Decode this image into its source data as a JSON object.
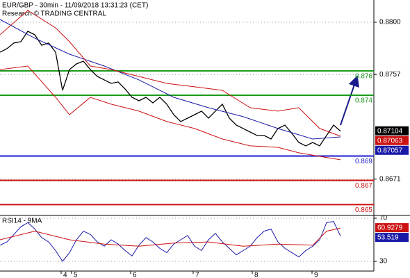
{
  "chart_data": [
    {
      "type": "line",
      "title": "EUR/GBP - 30min - 11/09/2018 13:31:23 (CET)",
      "subtitle": "Research © TRADING CENTRAL",
      "xlim": [
        0,
        269
      ],
      "ylim": [
        0.86411,
        0.88183
      ],
      "yticks": [
        {
          "value": 0.88,
          "label": "0.8800"
        },
        0.8757,
        0.8671
      ],
      "grid": true,
      "series": [
        {
          "color": "#000000",
          "x": [
            0,
            5,
            10,
            15,
            20,
            25,
            30,
            35,
            40,
            45,
            50,
            55,
            60,
            65,
            70,
            75,
            80,
            85,
            90,
            95,
            100,
            105,
            110,
            115,
            120,
            125,
            130,
            135,
            140,
            145,
            150,
            155,
            160,
            165,
            170,
            175,
            180,
            185,
            190,
            195,
            200,
            205,
            210,
            215,
            220,
            225,
            230,
            235,
            240,
            245
          ],
          "values": [
            0.87754,
            0.87783,
            0.87829,
            0.8784,
            0.87926,
            0.87897,
            0.87811,
            0.87829,
            0.87754,
            0.8744,
            0.87611,
            0.87657,
            0.8768,
            0.87611,
            0.87554,
            0.87526,
            0.87497,
            0.87509,
            0.87451,
            0.87383,
            0.87354,
            0.87383,
            0.87337,
            0.87383,
            0.87326,
            0.8724,
            0.87183,
            0.87211,
            0.8724,
            0.87269,
            0.87211,
            0.87269,
            0.87326,
            0.87211,
            0.87154,
            0.87126,
            0.87097,
            0.87069,
            0.87069,
            0.8704,
            0.87126,
            0.87154,
            0.87086,
            0.87011,
            0.86983,
            0.87011,
            0.86983,
            0.87069,
            0.87154,
            0.87104
          ]
        },
        {
          "color": "#1a1aa8",
          "x": [
            0,
            25,
            50,
            75,
            100,
            125,
            150,
            175,
            200,
            225,
            245
          ],
          "values": [
            0.88023,
            0.87869,
            0.87737,
            0.8764,
            0.87526,
            0.87383,
            0.87297,
            0.87223,
            0.87126,
            0.8704,
            0.87057
          ]
        },
        {
          "color": "#cc1111",
          "x": [
            0,
            20,
            40,
            50,
            65,
            80,
            100,
            120,
            140,
            160,
            180,
            200,
            215,
            230,
            245
          ],
          "values": [
            0.87897,
            0.88097,
            0.87954,
            0.8784,
            0.8764,
            0.87611,
            0.87554,
            0.87497,
            0.87469,
            0.8744,
            0.87297,
            0.87269,
            0.87297,
            0.87126,
            0.87063
          ]
        },
        {
          "color": "#cc1111",
          "x": [
            0,
            20,
            40,
            50,
            65,
            80,
            100,
            120,
            140,
            160,
            180,
            200,
            215,
            230,
            245
          ],
          "values": [
            0.87611,
            0.8764,
            0.87383,
            0.8724,
            0.87383,
            0.87326,
            0.87269,
            0.87183,
            0.87126,
            0.8704,
            0.86983,
            0.86971,
            0.86926,
            0.86897,
            0.86869
          ]
        }
      ],
      "levels": [
        {
          "value": 0.876,
          "color": "#1a9a1a"
        },
        {
          "value": 0.874,
          "color": "#1a9a1a"
        },
        {
          "value": 0.869,
          "color": "#1a1ad0"
        },
        {
          "value": 0.867,
          "color": "#cc1111"
        },
        {
          "value": 0.865,
          "color": "#cc1111"
        }
      ],
      "price_labels": [
        {
          "value": 0.87104,
          "color": "#000000"
        },
        {
          "value": 0.87063,
          "color": "#cc1111"
        },
        {
          "value": 0.87057,
          "color": "#1a1aa8"
        }
      ]
    },
    {
      "type": "line",
      "title": "RSI14 - 9MA",
      "xlim": [
        0,
        269
      ],
      "ylim": [
        21,
        71.3
      ],
      "yticks": [
        70,
        30
      ],
      "xticks": [
        {
          "value": 44,
          "label": "4"
        },
        {
          "value": 51.5,
          "label": "5"
        },
        {
          "value": 94,
          "label": "6"
        },
        {
          "value": 139,
          "label": "7"
        },
        {
          "value": 181.5,
          "label": "8"
        },
        {
          "value": 224.5,
          "label": "9"
        }
      ],
      "series": [
        {
          "color": "#1a1aa8",
          "x": [
            0,
            5,
            10,
            15,
            20,
            25,
            30,
            35,
            40,
            45,
            50,
            55,
            60,
            65,
            70,
            75,
            80,
            85,
            90,
            95,
            100,
            105,
            110,
            115,
            120,
            125,
            130,
            135,
            140,
            145,
            150,
            155,
            160,
            165,
            170,
            175,
            180,
            185,
            190,
            195,
            200,
            205,
            210,
            215,
            220,
            225,
            230,
            235,
            240,
            245
          ],
          "values": [
            45,
            48,
            55,
            62,
            66,
            60,
            52,
            48,
            40,
            30,
            38,
            50,
            58,
            55,
            48,
            44,
            50,
            46,
            40,
            35,
            45,
            52,
            48,
            42,
            38,
            46,
            50,
            54,
            44,
            40,
            50,
            56,
            48,
            42,
            36,
            40,
            44,
            52,
            58,
            60,
            48,
            42,
            38,
            34,
            40,
            44,
            50,
            66,
            67,
            53.519
          ]
        },
        {
          "color": "#cc1111",
          "x": [
            0,
            25,
            50,
            75,
            100,
            125,
            150,
            175,
            200,
            225,
            235,
            245
          ],
          "values": [
            50,
            58,
            50,
            46,
            44,
            47,
            48,
            44,
            46,
            45,
            58,
            60.9279
          ]
        }
      ],
      "value_labels": [
        {
          "value": 60.9279,
          "color": "#cc1111"
        },
        {
          "value": 53.519,
          "color": "#1a1aa8"
        }
      ]
    }
  ]
}
